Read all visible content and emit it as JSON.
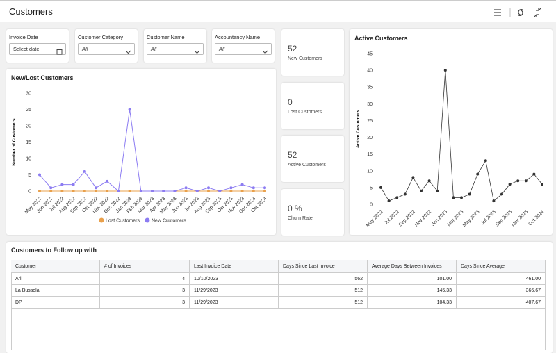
{
  "header": {
    "title": "Customers"
  },
  "filters": [
    {
      "label": "Invoice Date",
      "value": "Select date"
    },
    {
      "label": "Customer Category",
      "value": "All"
    },
    {
      "label": "Customer Name",
      "value": "All"
    },
    {
      "label": "Accountancy Name",
      "value": "All"
    }
  ],
  "kpis": [
    {
      "value": 52,
      "label": "New Customers"
    },
    {
      "value": 0,
      "label": "Lost Customers"
    },
    {
      "value": 52,
      "label": "Active Customers"
    },
    {
      "value": "0 %",
      "label": "Churn Rate"
    }
  ],
  "chart_data": [
    {
      "type": "line",
      "title": "New/Lost Customers",
      "y_label": "Number of Customers",
      "categories": [
        "May 2022",
        "Jun 2022",
        "Jul 2022",
        "Aug 2022",
        "Sep 2022",
        "Oct 2022",
        "Nov 2022",
        "Dec 2022",
        "Jan 2023",
        "Feb 2023",
        "Mar 2023",
        "Apr 2023",
        "May 2023",
        "Jun 2023",
        "Jul 2023",
        "Aug 2023",
        "Sep 2023",
        "Oct 2023",
        "Nov 2023",
        "Dec 2023",
        "Oct 2024"
      ],
      "series": [
        {
          "name": "Lost Customers",
          "color": "#e9a04b",
          "values": [
            0,
            0,
            0,
            0,
            0,
            0,
            0,
            0,
            0,
            0,
            0,
            0,
            0,
            0,
            0,
            0,
            0,
            0,
            0,
            0,
            0
          ]
        },
        {
          "name": "New Customers",
          "color": "#8c7cf2",
          "values": [
            5,
            1,
            2,
            2,
            6,
            1,
            3,
            0,
            25,
            0,
            0,
            0,
            0,
            1,
            0,
            1,
            0,
            1,
            2,
            1,
            1
          ]
        }
      ],
      "ylim": [
        0,
        30
      ],
      "yticks": [
        0,
        5,
        10,
        15,
        20,
        25,
        30
      ],
      "grid": false,
      "legend": "bottom"
    },
    {
      "type": "line",
      "title": "Active Customers",
      "y_label": "Active Customers",
      "categories": [
        "May 2022",
        null,
        "Jul 2022",
        null,
        "Sep 2022",
        null,
        "Nov 2022",
        null,
        "Jan 2023",
        null,
        "Mar 2023",
        null,
        "May 2023",
        null,
        "Jul 2023",
        null,
        "Sep 2023",
        null,
        "Nov 2023",
        null,
        "Oct 2024"
      ],
      "series": [
        {
          "color": "#333333",
          "values": [
            5,
            1,
            2,
            3,
            8,
            4,
            7,
            4,
            40,
            2,
            2,
            3,
            9,
            13,
            1,
            3,
            6,
            7,
            7,
            9,
            6
          ]
        }
      ],
      "ylim": [
        0,
        45
      ],
      "yticks": [
        0,
        5,
        10,
        15,
        20,
        25,
        30,
        35,
        40,
        45
      ],
      "grid": false
    }
  ],
  "table": {
    "title": "Customers to Follow up with",
    "columns": [
      "Customer",
      "# of Invoices",
      "Last Invoice Date",
      "Days Since Last Invoice",
      "Average Days Between Invoices",
      "Days Since Average"
    ],
    "rows": [
      [
        "Ari",
        4,
        "10/10/2023",
        562,
        "101.00",
        "461.00"
      ],
      [
        "La Bussola",
        3,
        "11/29/2023",
        512,
        "145.33",
        "366.67"
      ],
      [
        "DP",
        3,
        "11/29/2023",
        512,
        "104.33",
        "407.67"
      ]
    ]
  }
}
